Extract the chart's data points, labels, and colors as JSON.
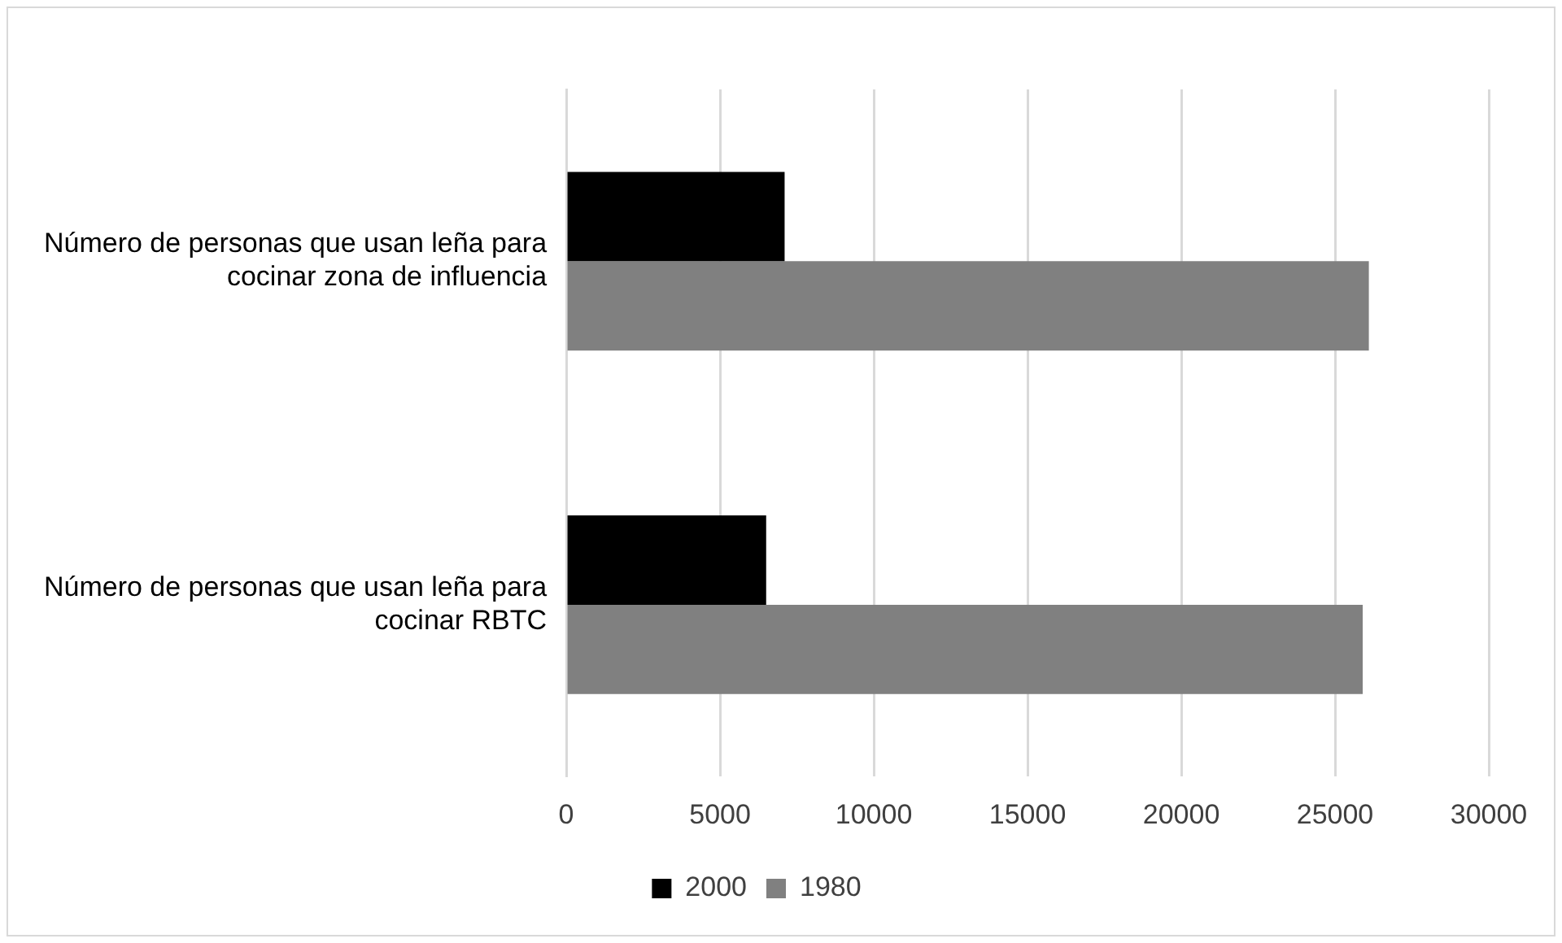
{
  "chart_data": {
    "type": "bar",
    "orientation": "horizontal",
    "categories": [
      "Número de personas que usan leña para cocinar zona de influencia",
      "Número de personas que usan leña para cocinar RBTC"
    ],
    "series": [
      {
        "name": "2000",
        "color": "#000000",
        "values": [
          7100,
          6500
        ]
      },
      {
        "name": "1980",
        "color": "#808080",
        "values": [
          26100,
          25900
        ]
      }
    ],
    "xlim": [
      0,
      30000
    ],
    "xticks": [
      0,
      5000,
      10000,
      15000,
      20000,
      25000,
      30000
    ],
    "grid": "x",
    "legend": "bottom"
  }
}
